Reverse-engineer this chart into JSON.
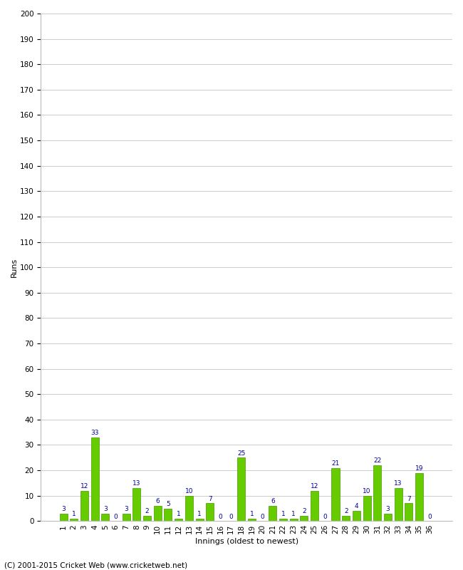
{
  "innings": [
    1,
    2,
    3,
    4,
    5,
    6,
    7,
    8,
    9,
    10,
    11,
    12,
    13,
    14,
    15,
    16,
    17,
    18,
    19,
    20,
    21,
    22,
    23,
    24,
    25,
    26,
    27,
    28,
    29,
    30,
    31,
    32,
    33,
    34,
    35,
    36
  ],
  "runs": [
    3,
    1,
    12,
    33,
    3,
    0,
    3,
    13,
    2,
    6,
    5,
    1,
    10,
    1,
    7,
    0,
    0,
    25,
    1,
    0,
    6,
    1,
    1,
    2,
    12,
    0,
    21,
    2,
    4,
    10,
    22,
    3,
    13,
    7,
    19,
    0
  ],
  "bar_color": "#66cc00",
  "bar_edge_color": "#449900",
  "label_color": "#000099",
  "xlabel": "Innings (oldest to newest)",
  "ylabel": "Runs",
  "ylim": [
    0,
    200
  ],
  "yticks": [
    0,
    10,
    20,
    30,
    40,
    50,
    60,
    70,
    80,
    90,
    100,
    110,
    120,
    130,
    140,
    150,
    160,
    170,
    180,
    190,
    200
  ],
  "grid_color": "#cccccc",
  "bg_color": "#ffffff",
  "footer": "(C) 2001-2015 Cricket Web (www.cricketweb.net)",
  "axis_label_fontsize": 8,
  "tick_fontsize": 7.5,
  "value_label_fontsize": 6.5,
  "footer_fontsize": 7.5
}
